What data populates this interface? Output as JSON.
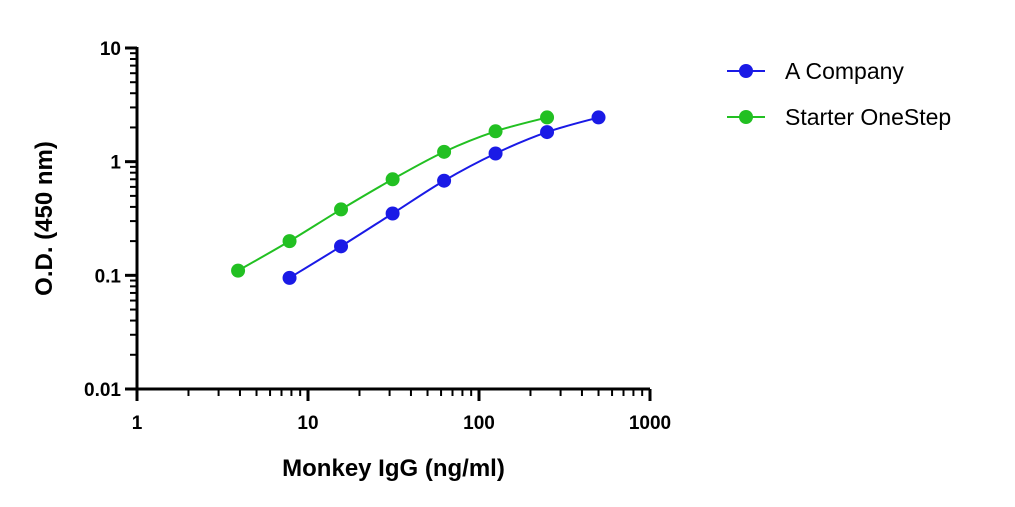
{
  "chart_data": {
    "type": "line",
    "xlabel": "Monkey IgG (ng/ml)",
    "ylabel": "O.D. (450 nm)",
    "xscale": "log",
    "yscale": "log",
    "xlim": [
      1,
      1000
    ],
    "ylim": [
      0.01,
      10
    ],
    "x_ticks": [
      "1",
      "10",
      "100",
      "1000"
    ],
    "y_ticks": [
      "0.01",
      "0.1",
      "1",
      "10"
    ],
    "legend_position": "top-right (outside plot)",
    "grid": false,
    "series": [
      {
        "name": "A Company",
        "color": "#1a1ae6",
        "x": [
          7.8,
          15.6,
          31.25,
          62.5,
          125,
          250,
          500
        ],
        "y": [
          0.095,
          0.18,
          0.35,
          0.68,
          1.18,
          1.82,
          2.45
        ]
      },
      {
        "name": "Starter OneStep",
        "color": "#22c022",
        "x": [
          3.9,
          7.8,
          15.6,
          31.25,
          62.5,
          125,
          250
        ],
        "y": [
          0.11,
          0.2,
          0.38,
          0.7,
          1.22,
          1.85,
          2.45
        ]
      }
    ]
  }
}
